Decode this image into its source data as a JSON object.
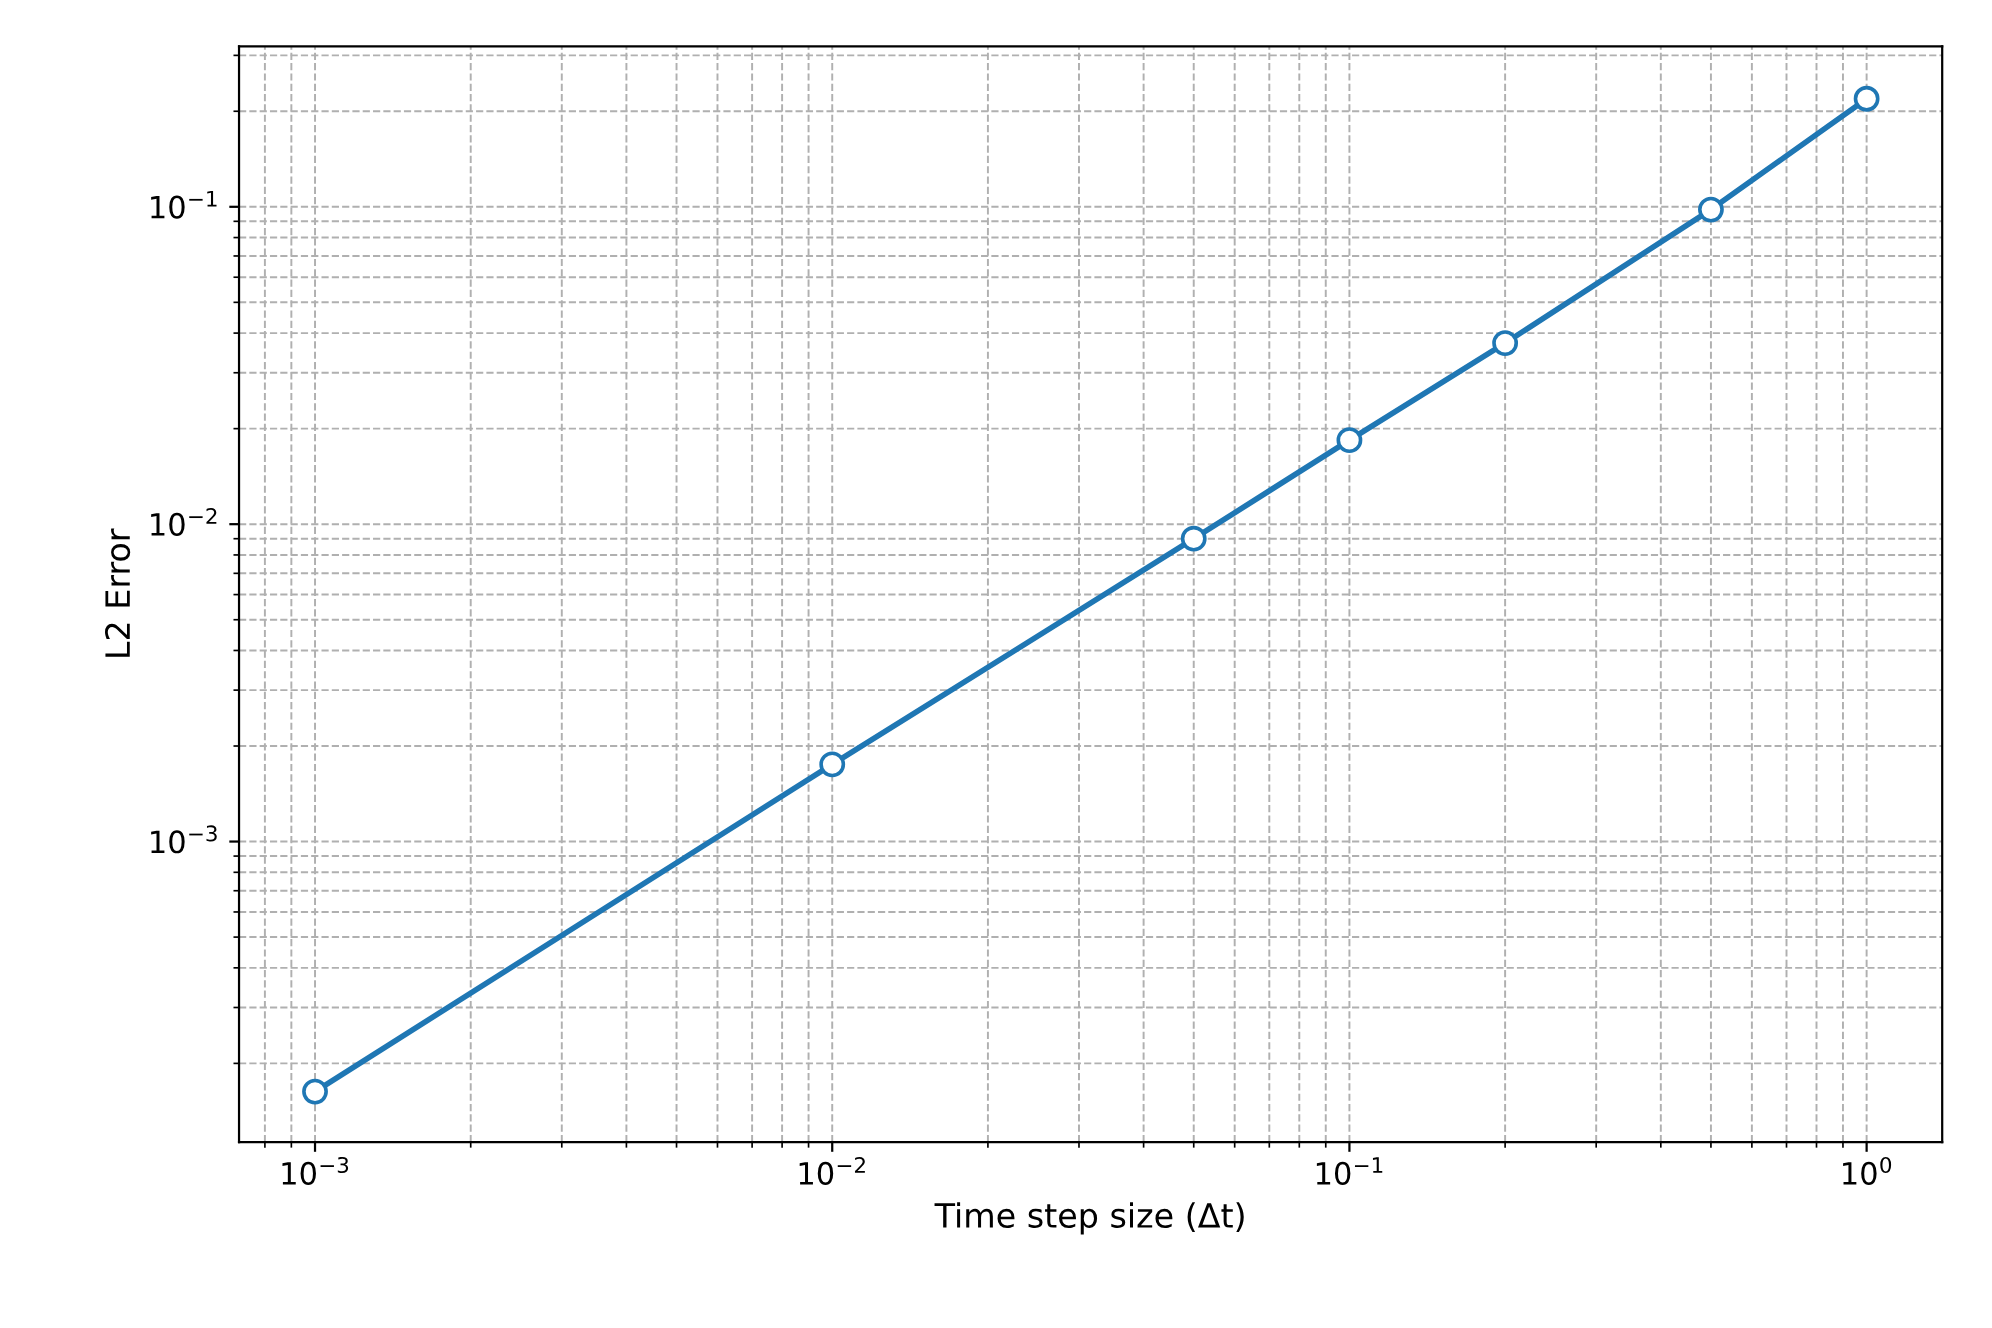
{
  "chart_data": {
    "type": "line",
    "xlabel": "Time step size (Δt)",
    "ylabel": "L2 Error",
    "x": [
      0.001,
      0.01,
      0.05,
      0.1,
      0.2,
      0.5,
      1.0
    ],
    "series": [
      {
        "color": "#1f77b4",
        "values": [
          0.000163,
          0.00175,
          0.009,
          0.0184,
          0.0372,
          0.098,
          0.219
        ]
      }
    ],
    "log": "xy",
    "xlim": [
      0.000713,
      1.4
    ],
    "ylim": [
      0.000113,
      0.32
    ],
    "xticks": [
      {
        "value": 0.001,
        "label": "10$^{−3}$"
      },
      {
        "value": 0.01,
        "label": "10$^{−2}$"
      },
      {
        "value": 0.1,
        "label": "10$^{−1}$"
      },
      {
        "value": 1,
        "label": "10$^{0}$"
      }
    ],
    "yticks": [
      {
        "value": 0.001,
        "label": "10$^{−3}$"
      },
      {
        "value": 0.01,
        "label": "10$^{−2}$"
      },
      {
        "value": 0.1,
        "label": "10$^{−1}$"
      }
    ],
    "grid": true,
    "marker": "circle",
    "line_style": "solid"
  }
}
